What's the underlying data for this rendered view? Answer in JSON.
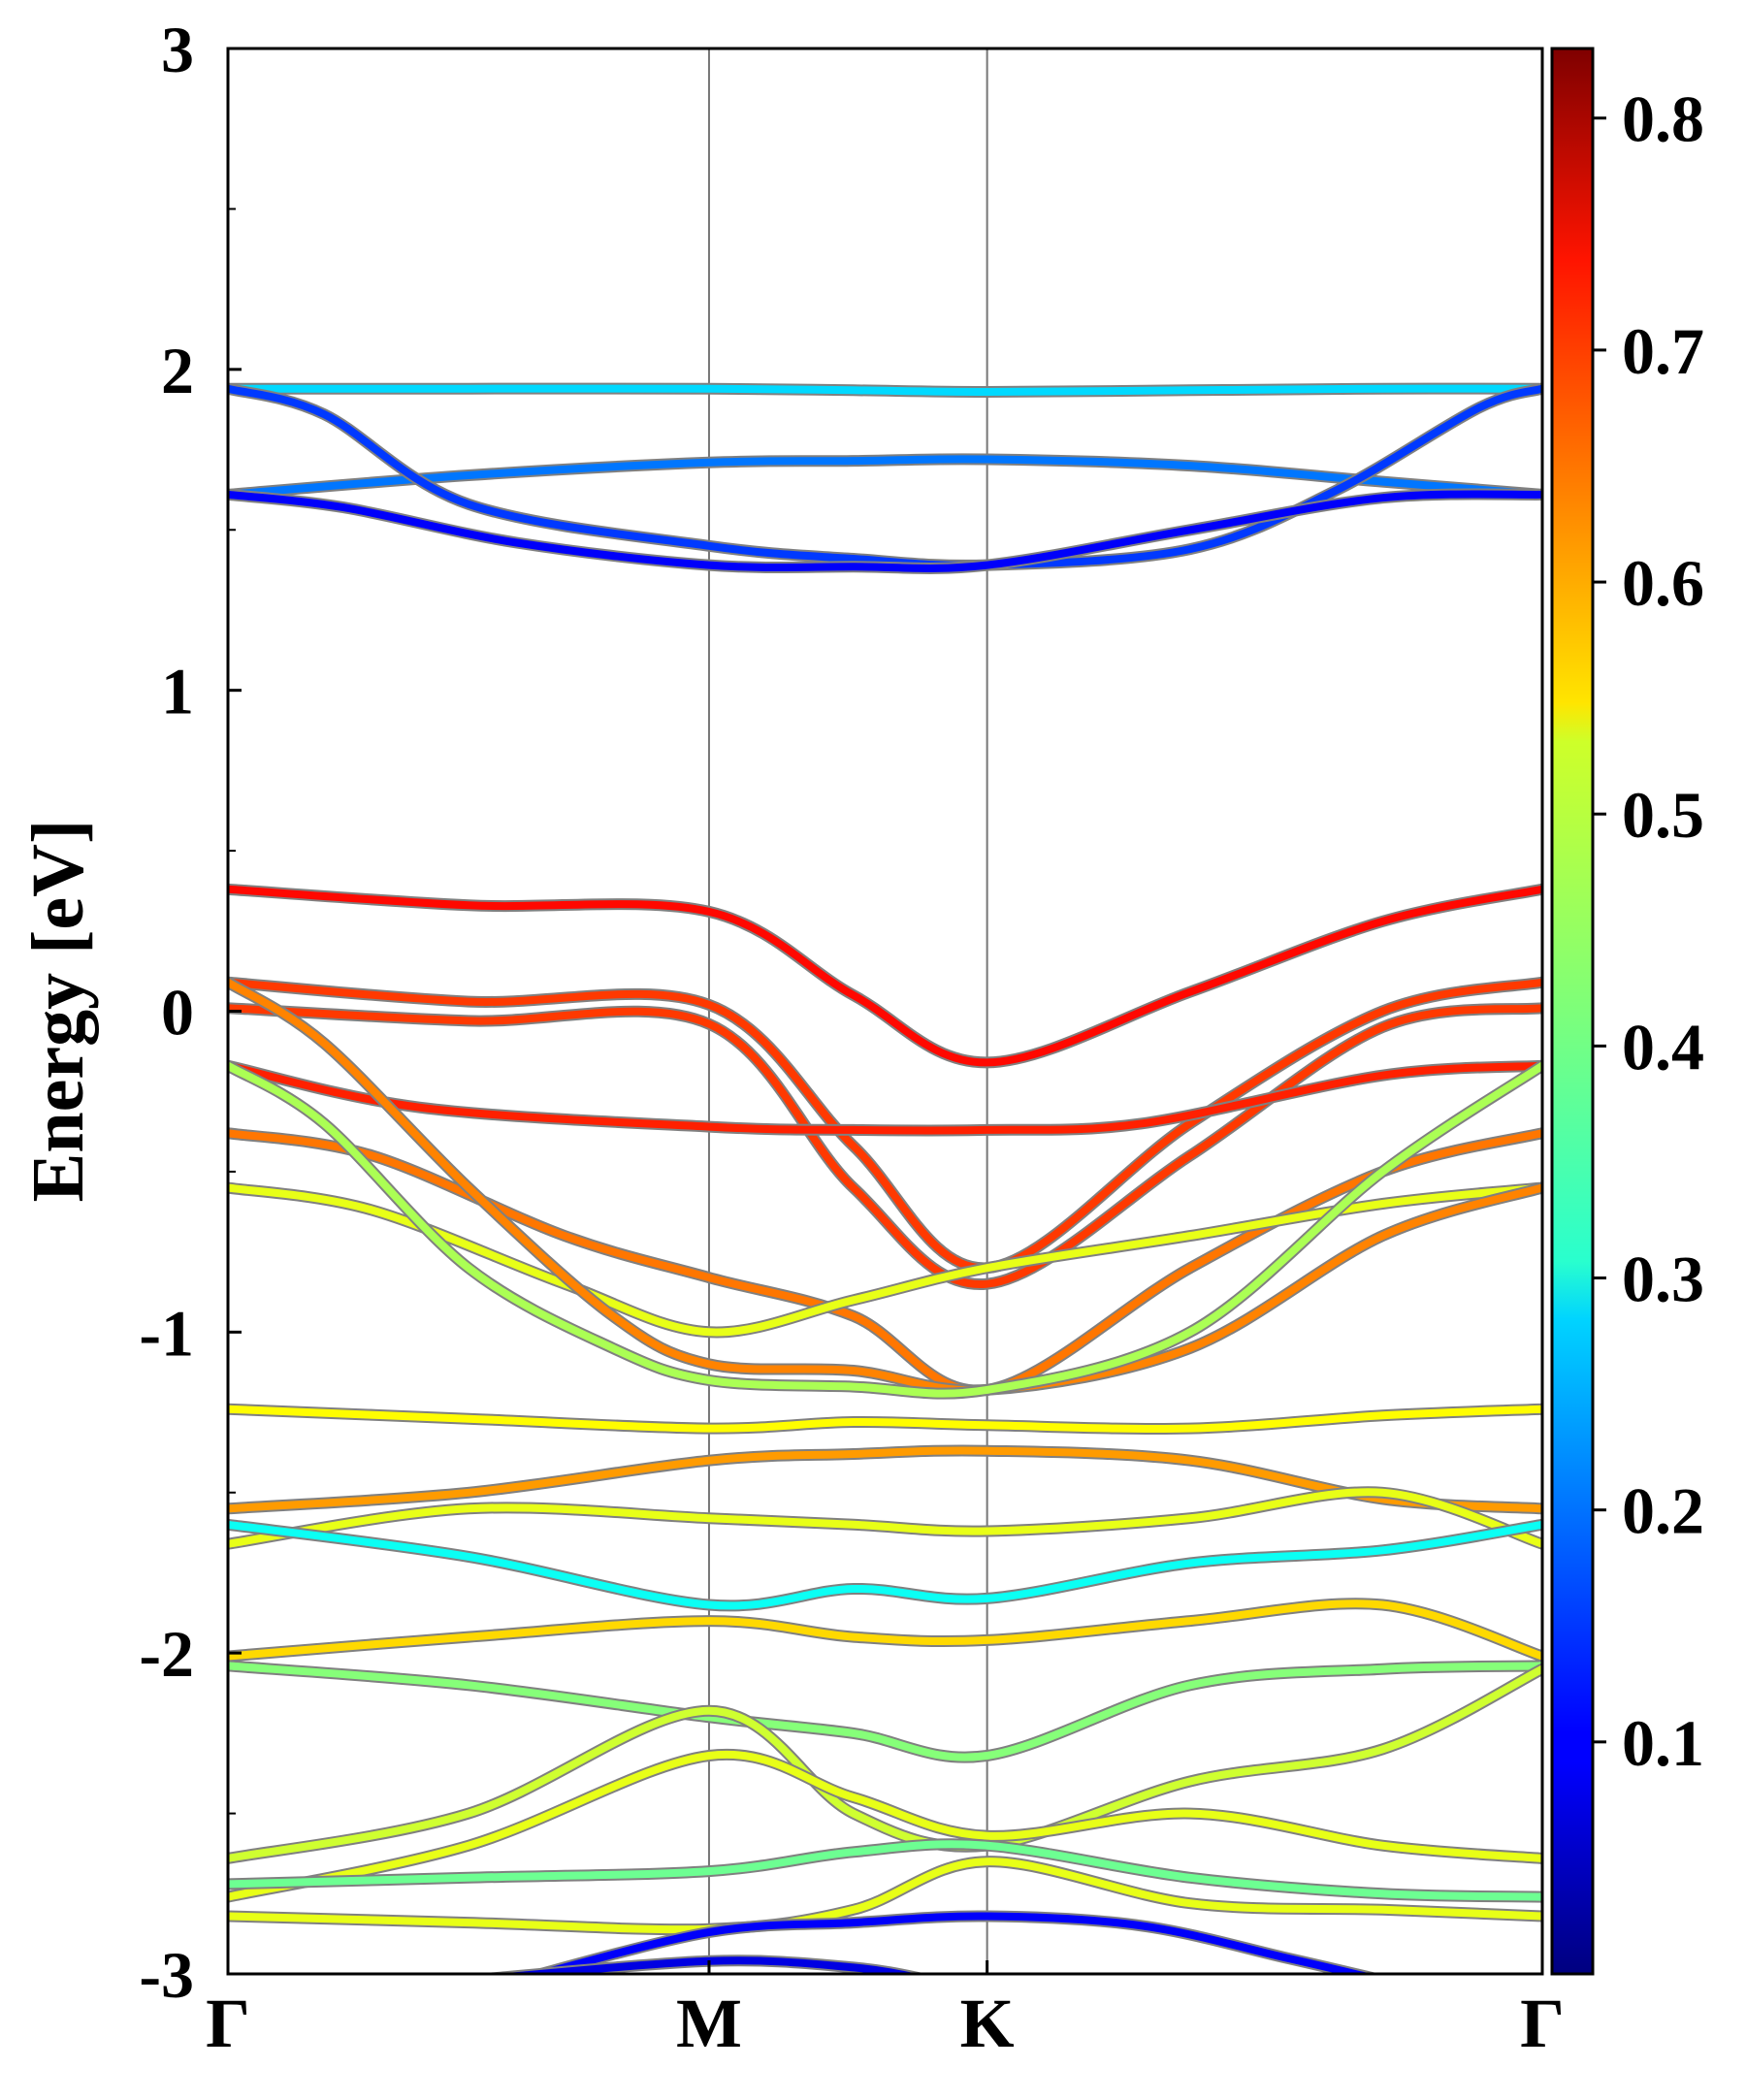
{
  "chart_data": {
    "type": "line",
    "title": "",
    "xlabel": "",
    "ylabel": "Energy [eV]",
    "ylim": [
      -3,
      3
    ],
    "yticks": [
      "3",
      "2",
      "1",
      "0",
      "-1",
      "-2",
      "-3"
    ],
    "kpoints": [
      {
        "label": "Γ",
        "pos": 0.0
      },
      {
        "label": "M",
        "pos": 0.5
      },
      {
        "label": "K",
        "pos": 0.789
      },
      {
        "label": "Γ",
        "pos": 1.366
      }
    ],
    "grid": false,
    "colorbar": {
      "min": 0.0,
      "max": 0.83,
      "ticks": [
        "0.1",
        "0.2",
        "0.3",
        "0.4",
        "0.5",
        "0.6",
        "0.7",
        "0.8"
      ],
      "colormap": "jet"
    },
    "series": [
      {
        "x": [
          0.0,
          0.25,
          0.5,
          0.65,
          0.789,
          1.0,
          1.2,
          1.366
        ],
        "y": [
          1.94,
          1.94,
          1.94,
          1.935,
          1.93,
          1.935,
          1.94,
          1.94
        ],
        "c": 0.28
      },
      {
        "x": [
          0.0,
          0.25,
          0.5,
          0.65,
          0.789,
          1.0,
          1.2,
          1.366
        ],
        "y": [
          1.61,
          1.67,
          1.71,
          1.715,
          1.72,
          1.7,
          1.65,
          1.61
        ],
        "c": 0.2
      },
      {
        "x": [
          0.0,
          0.1,
          0.25,
          0.5,
          0.65,
          0.789,
          1.0,
          1.15,
          1.3,
          1.366
        ],
        "y": [
          1.94,
          1.86,
          1.58,
          1.45,
          1.41,
          1.39,
          1.44,
          1.62,
          1.88,
          1.94
        ],
        "c": 0.15
      },
      {
        "x": [
          0.0,
          0.12,
          0.3,
          0.5,
          0.65,
          0.789,
          1.0,
          1.2,
          1.366
        ],
        "y": [
          1.61,
          1.57,
          1.46,
          1.39,
          1.385,
          1.39,
          1.5,
          1.6,
          1.61
        ],
        "c": 0.1
      },
      {
        "x": [
          0.0,
          0.25,
          0.5,
          0.65,
          0.789,
          1.0,
          1.2,
          1.366
        ],
        "y": [
          0.38,
          0.33,
          0.31,
          0.05,
          -0.16,
          0.06,
          0.28,
          0.38
        ],
        "c": 0.72
      },
      {
        "x": [
          0.0,
          0.25,
          0.5,
          0.65,
          0.789,
          1.0,
          1.2,
          1.366
        ],
        "y": [
          0.09,
          0.03,
          0.02,
          -0.42,
          -0.8,
          -0.35,
          0.0,
          0.09
        ],
        "c": 0.68
      },
      {
        "x": [
          0.0,
          0.25,
          0.5,
          0.65,
          0.789,
          1.0,
          1.2,
          1.366
        ],
        "y": [
          0.01,
          -0.03,
          -0.04,
          -0.55,
          -0.85,
          -0.45,
          -0.05,
          0.01
        ],
        "c": 0.68
      },
      {
        "x": [
          0.0,
          0.2,
          0.5,
          0.65,
          0.789,
          0.95,
          1.2,
          1.366
        ],
        "y": [
          -0.17,
          -0.3,
          -0.36,
          -0.37,
          -0.37,
          -0.35,
          -0.2,
          -0.17
        ],
        "c": 0.7
      },
      {
        "x": [
          0.0,
          0.15,
          0.35,
          0.5,
          0.65,
          0.789,
          1.0,
          1.2,
          1.366
        ],
        "y": [
          -0.38,
          -0.45,
          -0.7,
          -0.83,
          -0.95,
          -1.18,
          -0.8,
          -0.5,
          -0.38
        ],
        "c": 0.63
      },
      {
        "x": [
          0.0,
          0.15,
          0.35,
          0.5,
          0.65,
          0.789,
          1.0,
          1.2,
          1.366
        ],
        "y": [
          -0.55,
          -0.62,
          -0.85,
          -1.0,
          -0.9,
          -0.8,
          -0.7,
          -0.6,
          -0.55
        ],
        "c": 0.5
      },
      {
        "x": [
          0.0,
          0.1,
          0.25,
          0.4,
          0.5,
          0.65,
          0.789,
          1.0,
          1.2,
          1.366
        ],
        "y": [
          0.09,
          -0.1,
          -0.55,
          -0.95,
          -1.1,
          -1.12,
          -1.18,
          -1.05,
          -0.7,
          -0.55
        ],
        "c": 0.62
      },
      {
        "x": [
          0.0,
          0.1,
          0.25,
          0.4,
          0.5,
          0.65,
          0.789,
          1.0,
          1.2,
          1.366
        ],
        "y": [
          -0.17,
          -0.35,
          -0.8,
          -1.05,
          -1.15,
          -1.17,
          -1.18,
          -1.0,
          -0.5,
          -0.17
        ],
        "c": 0.45
      },
      {
        "x": [
          0.0,
          0.25,
          0.5,
          0.65,
          0.789,
          1.0,
          1.2,
          1.366
        ],
        "y": [
          -1.24,
          -1.27,
          -1.3,
          -1.28,
          -1.29,
          -1.3,
          -1.26,
          -1.24
        ],
        "c": 0.52
      },
      {
        "x": [
          0.0,
          0.25,
          0.5,
          0.65,
          0.789,
          1.0,
          1.2,
          1.366
        ],
        "y": [
          -1.55,
          -1.5,
          -1.4,
          -1.38,
          -1.37,
          -1.4,
          -1.52,
          -1.55
        ],
        "c": 0.6
      },
      {
        "x": [
          0.0,
          0.25,
          0.5,
          0.65,
          0.789,
          1.0,
          1.2,
          1.366
        ],
        "y": [
          -1.66,
          -1.55,
          -1.58,
          -1.6,
          -1.62,
          -1.58,
          -1.5,
          -1.66
        ],
        "c": 0.5
      },
      {
        "x": [
          0.0,
          0.25,
          0.5,
          0.65,
          0.789,
          1.0,
          1.2,
          1.366
        ],
        "y": [
          -1.6,
          -1.7,
          -1.85,
          -1.8,
          -1.83,
          -1.72,
          -1.68,
          -1.6
        ],
        "c": 0.32
      },
      {
        "x": [
          0.0,
          0.25,
          0.5,
          0.65,
          0.789,
          1.0,
          1.2,
          1.366
        ],
        "y": [
          -2.01,
          -1.95,
          -1.9,
          -1.95,
          -1.96,
          -1.9,
          -1.85,
          -2.01
        ],
        "c": 0.55
      },
      {
        "x": [
          0.0,
          0.25,
          0.5,
          0.65,
          0.789,
          1.0,
          1.2,
          1.366
        ],
        "y": [
          -2.04,
          -2.1,
          -2.2,
          -2.25,
          -2.32,
          -2.1,
          -2.05,
          -2.04
        ],
        "c": 0.42
      },
      {
        "x": [
          0.0,
          0.25,
          0.5,
          0.65,
          0.789,
          1.0,
          1.2,
          1.366
        ],
        "y": [
          -2.64,
          -2.5,
          -2.18,
          -2.5,
          -2.6,
          -2.4,
          -2.3,
          -2.05
        ],
        "c": 0.48
      },
      {
        "x": [
          0.0,
          0.25,
          0.5,
          0.65,
          0.789,
          1.0,
          1.2,
          1.366
        ],
        "y": [
          -2.76,
          -2.6,
          -2.32,
          -2.45,
          -2.57,
          -2.5,
          -2.6,
          -2.64
        ],
        "c": 0.5
      },
      {
        "x": [
          0.0,
          0.25,
          0.5,
          0.65,
          0.789,
          1.0,
          1.2,
          1.366
        ],
        "y": [
          -2.72,
          -2.7,
          -2.68,
          -2.62,
          -2.6,
          -2.7,
          -2.75,
          -2.76
        ],
        "c": 0.4
      },
      {
        "x": [
          0.0,
          0.25,
          0.5,
          0.65,
          0.789,
          1.0,
          1.2,
          1.366
        ],
        "y": [
          -2.82,
          -2.84,
          -2.86,
          -2.8,
          -2.65,
          -2.78,
          -2.8,
          -2.82
        ],
        "c": 0.5
      },
      {
        "x": [
          0.3,
          0.5,
          0.65,
          0.789,
          0.95,
          1.1,
          1.2
        ],
        "y": [
          -3.02,
          -2.87,
          -2.84,
          -2.82,
          -2.85,
          -2.95,
          -3.02
        ],
        "c": 0.1
      },
      {
        "x": [
          0.25,
          0.5,
          0.65,
          0.73
        ],
        "y": [
          -3.02,
          -2.96,
          -2.98,
          -3.02
        ],
        "c": 0.08
      }
    ]
  }
}
